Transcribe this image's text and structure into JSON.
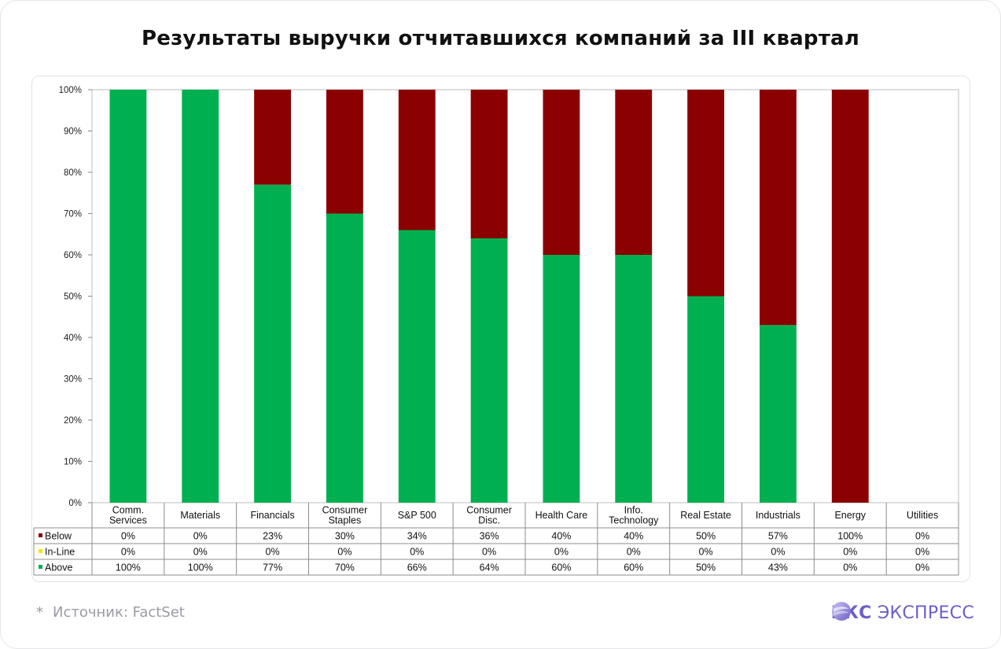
{
  "title": "Результаты выручки отчитавшихся компаний за III квартал",
  "footer": {
    "star": "*",
    "source": "Источник: FactSet"
  },
  "brand": {
    "bold": "БКС",
    "light": "ЭКСПРЕСС"
  },
  "colors": {
    "below": "#8b0000",
    "inline": "#f2e600",
    "above": "#00b050",
    "brand": "#6b5fc7"
  },
  "chart_data": {
    "type": "bar",
    "stacked": true,
    "ylim": [
      0,
      100
    ],
    "yticks": [
      "0%",
      "10%",
      "20%",
      "30%",
      "40%",
      "50%",
      "60%",
      "70%",
      "80%",
      "90%",
      "100%"
    ],
    "categories": [
      [
        "Comm.",
        "Services"
      ],
      [
        "Materials"
      ],
      [
        "Financials"
      ],
      [
        "Consumer",
        "Staples"
      ],
      [
        "S&P 500"
      ],
      [
        "Consumer",
        "Disc."
      ],
      [
        "Health Care"
      ],
      [
        "Info.",
        "Technology"
      ],
      [
        "Real Estate"
      ],
      [
        "Industrials"
      ],
      [
        "Energy"
      ],
      [
        "Utilities"
      ]
    ],
    "series": [
      {
        "name": "Below",
        "color": "#8b0000",
        "values": [
          0,
          0,
          23,
          30,
          34,
          36,
          40,
          40,
          50,
          57,
          100,
          0
        ]
      },
      {
        "name": "In-Line",
        "color": "#f2e600",
        "values": [
          0,
          0,
          0,
          0,
          0,
          0,
          0,
          0,
          0,
          0,
          0,
          0
        ]
      },
      {
        "name": "Above",
        "color": "#00b050",
        "values": [
          100,
          100,
          77,
          70,
          66,
          64,
          60,
          60,
          50,
          43,
          0,
          0
        ]
      }
    ],
    "table_order": [
      "Below",
      "In-Line",
      "Above"
    ],
    "stack_order": [
      "Above",
      "In-Line",
      "Below"
    ]
  }
}
